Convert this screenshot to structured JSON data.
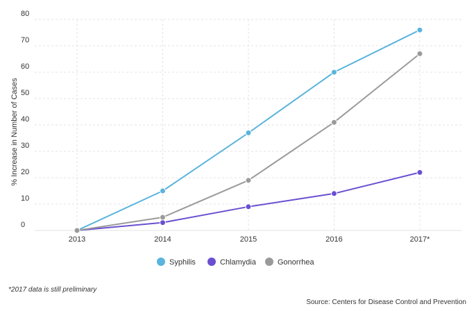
{
  "chart_data": {
    "type": "line",
    "title": "",
    "xlabel": "",
    "ylabel": "% Increase in Number of Cases",
    "x": [
      "2013",
      "2014",
      "2015",
      "2016",
      "2017*"
    ],
    "y_ticks": [
      "0",
      "10",
      "20",
      "30",
      "40",
      "50",
      "60",
      "70",
      "80"
    ],
    "ylim": [
      0,
      80
    ],
    "grid": true,
    "legend_position": "bottom-center",
    "series": [
      {
        "name": "Syphilis",
        "color": "#5ab4dc",
        "values": [
          0,
          15,
          37,
          60,
          76
        ]
      },
      {
        "name": "Chlamydia",
        "color": "#6a4fd1",
        "values": [
          0,
          3,
          9,
          14,
          22
        ]
      },
      {
        "name": "Gonorrhea",
        "color": "#9a9a9a",
        "values": [
          0,
          5,
          19,
          41,
          67
        ]
      }
    ]
  },
  "footnote": "*2017 data is still preliminary",
  "source": "Source: Centers for Disease Control and Prevention",
  "colors": {
    "grid": "#e3e3e3",
    "text": "#333333"
  }
}
